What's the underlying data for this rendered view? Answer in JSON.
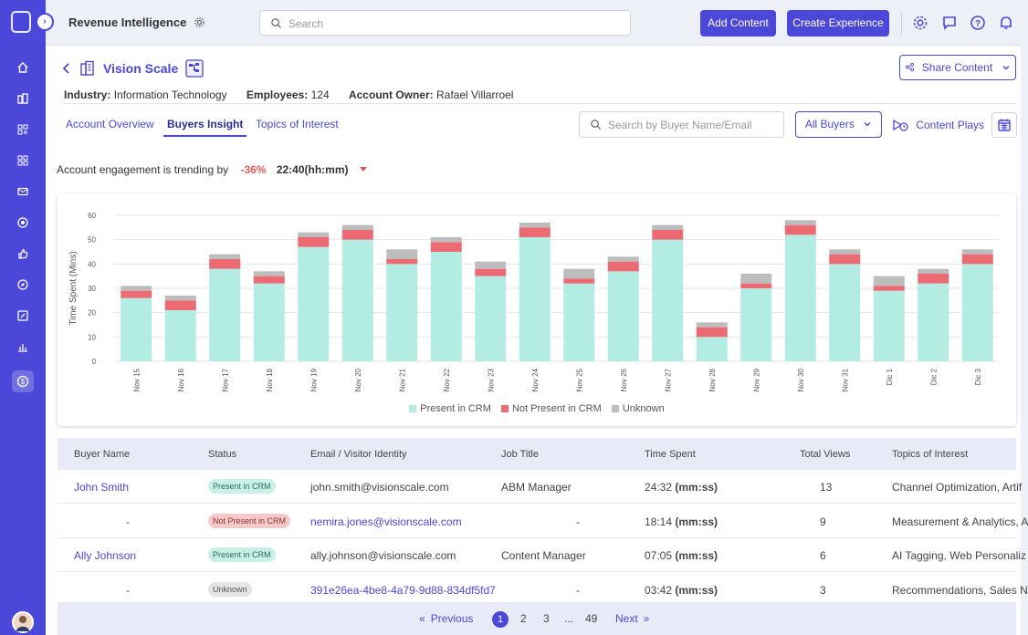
{
  "app": {
    "title": "Revenue Intelligence",
    "search_placeholder": "Search"
  },
  "toolbar": {
    "add_content": "Add Content",
    "create_experience": "Create Experience"
  },
  "account": {
    "name": "Vision Scale",
    "share_label": "Share Content",
    "industry_label": "Industry:",
    "industry": "Information Technology",
    "employees_label": "Employees:",
    "employees": "124",
    "owner_label": "Account Owner:",
    "owner": "Rafael Villarroel"
  },
  "tabs": [
    {
      "label": "Account Overview"
    },
    {
      "label": "Buyers Insight"
    },
    {
      "label": "Topics of Interest"
    }
  ],
  "filters": {
    "buyer_search_placeholder": "Search by Buyer Name/Email",
    "buyers_dropdown": "All Buyers",
    "content_plays": "Content Plays"
  },
  "trend": {
    "label": "Account engagement is trending by",
    "percent": "-36%",
    "time": "22:40(hh:mm)"
  },
  "colors": {
    "accent": "#4b47d9",
    "present": "#b2ece2",
    "not_present": "#ec6a72",
    "unknown": "#bdbdbd"
  },
  "chart_data": {
    "type": "bar",
    "stacked": true,
    "ylabel": "Time Spent (Mins)",
    "ylim": [
      0,
      60
    ],
    "yticks": [
      0,
      10,
      20,
      30,
      40,
      50,
      60
    ],
    "categories": [
      "Nov 15",
      "Nov 16",
      "Nov 17",
      "Nov 18",
      "Nov 19",
      "Nov 20",
      "Nov 21",
      "Nov 22",
      "Nov 23",
      "Nov 24",
      "Nov 25",
      "Nov 26",
      "Nov 27",
      "Nov 28",
      "Nov 29",
      "Nov 30",
      "Nov 31",
      "Dic 1",
      "Dic 2",
      "Dic 3"
    ],
    "series": [
      {
        "name": "Present in CRM",
        "values": [
          26,
          21,
          38,
          32,
          47,
          50,
          40,
          45,
          35,
          51,
          32,
          37,
          50,
          10,
          30,
          52,
          40,
          29,
          32,
          40
        ]
      },
      {
        "name": "Not Present in CRM",
        "values": [
          3,
          4,
          4,
          3,
          4,
          4,
          2,
          4,
          3,
          4,
          2,
          4,
          4,
          4,
          2,
          4,
          4,
          2,
          4,
          4
        ]
      },
      {
        "name": "Unknown",
        "values": [
          2,
          2,
          2,
          2,
          2,
          2,
          4,
          2,
          3,
          2,
          4,
          2,
          2,
          2,
          4,
          2,
          2,
          4,
          2,
          2
        ]
      }
    ],
    "legend": "bottom",
    "grid": true
  },
  "table": {
    "columns": [
      "Buyer Name",
      "Status",
      "Email / Visitor Identity",
      "Job Title",
      "Time Spent",
      "Total Views",
      "Topics of Interest"
    ],
    "time_unit": "(mm:ss)",
    "rows": [
      {
        "name": "John Smith",
        "status": "Present in CRM",
        "status_kind": "present",
        "email": "john.smith@visionscale.com",
        "email_link": false,
        "job": "ABM Manager",
        "time": "24:32",
        "views": "13",
        "topics": "Channel Optimization, Artif"
      },
      {
        "name": "-",
        "status": "Not Present in CRM",
        "status_kind": "not",
        "email": "nemira.jones@visionscale.com",
        "email_link": true,
        "job": "-",
        "time": "18:14",
        "views": "9",
        "topics": "Measurement & Analytics, A"
      },
      {
        "name": "Ally Johnson",
        "status": "Present in CRM",
        "status_kind": "present",
        "email": "ally.johnson@visionscale.com",
        "email_link": false,
        "job": "Content Manager",
        "time": "07:05",
        "views": "6",
        "topics": "AI Tagging, Web Personaliz"
      },
      {
        "name": "-",
        "status": "Unknown",
        "status_kind": "unknown",
        "email": "391e26ea-4be8-4a79-9d88-834df5fd7",
        "email_link": true,
        "job": "-",
        "time": "03:42",
        "views": "3",
        "topics": "Recommendations, Sales N"
      }
    ]
  },
  "pagination": {
    "previous": "Previous",
    "next": "Next",
    "pages": [
      "1",
      "2",
      "3",
      "...",
      "49"
    ]
  }
}
